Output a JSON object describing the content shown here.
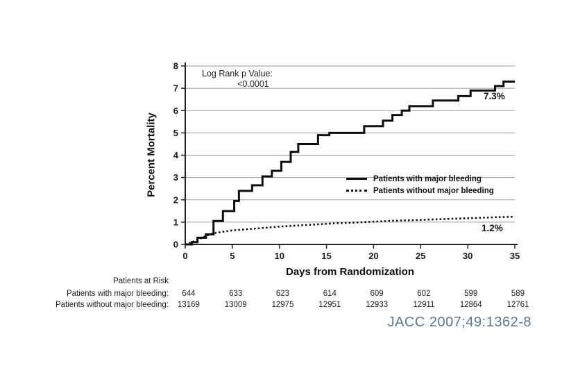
{
  "colors": {
    "background": "#ffffff",
    "curve": "#0e0e0e",
    "gridline": "#999999",
    "axis": "#222222",
    "citation_blue": "#5e7795"
  },
  "chart_data": {
    "type": "line",
    "subtype": "kaplan-meier-step",
    "title": "",
    "xlabel": "Days from Randomization",
    "ylabel": "Percent Mortality",
    "xlim": [
      0,
      35
    ],
    "ylim": [
      0,
      8
    ],
    "x_ticks": [
      0,
      5,
      10,
      15,
      20,
      25,
      30,
      35
    ],
    "y_ticks": [
      0,
      1,
      2,
      3,
      4,
      5,
      6,
      7,
      8
    ],
    "grid": "horizontal",
    "legend_position": "inside-right-middle",
    "annotation": {
      "line1": "Log Rank p Value:",
      "line2": "<0.0001"
    },
    "series": [
      {
        "name": "Patients with major bleeding",
        "style": "solid",
        "end_label": "7.3%",
        "points": [
          [
            0,
            0
          ],
          [
            0.7,
            0.1
          ],
          [
            1.3,
            0.3
          ],
          [
            2.2,
            0.45
          ],
          [
            3.0,
            1.05
          ],
          [
            4.0,
            1.5
          ],
          [
            5.2,
            1.95
          ],
          [
            5.7,
            2.4
          ],
          [
            7.1,
            2.65
          ],
          [
            8.2,
            3.05
          ],
          [
            9.2,
            3.3
          ],
          [
            10.2,
            3.7
          ],
          [
            11.2,
            4.15
          ],
          [
            12.0,
            4.5
          ],
          [
            14.1,
            4.9
          ],
          [
            15.3,
            5.0
          ],
          [
            19.0,
            5.3
          ],
          [
            21.0,
            5.55
          ],
          [
            22.0,
            5.8
          ],
          [
            23.0,
            6.0
          ],
          [
            23.8,
            6.2
          ],
          [
            26.3,
            6.45
          ],
          [
            29.0,
            6.65
          ],
          [
            30.3,
            6.9
          ],
          [
            32.9,
            7.1
          ],
          [
            33.8,
            7.3
          ],
          [
            35,
            7.3
          ]
        ]
      },
      {
        "name": "Patients without major bleeding",
        "style": "dotted",
        "end_label": "1.2%",
        "points": [
          [
            0,
            0
          ],
          [
            0.8,
            0.12
          ],
          [
            1.6,
            0.27
          ],
          [
            2.3,
            0.4
          ],
          [
            3.0,
            0.5
          ],
          [
            4.0,
            0.57
          ],
          [
            5.0,
            0.63
          ],
          [
            6.5,
            0.68
          ],
          [
            8.0,
            0.73
          ],
          [
            10.0,
            0.8
          ],
          [
            12.0,
            0.85
          ],
          [
            14.0,
            0.9
          ],
          [
            16.0,
            0.95
          ],
          [
            18.0,
            0.98
          ],
          [
            20.0,
            1.02
          ],
          [
            22.0,
            1.06
          ],
          [
            25.0,
            1.1
          ],
          [
            27.0,
            1.13
          ],
          [
            29.0,
            1.16
          ],
          [
            31.0,
            1.19
          ],
          [
            33.0,
            1.22
          ],
          [
            35,
            1.24
          ]
        ]
      }
    ]
  },
  "risk_table": {
    "title": "Patients at Risk",
    "rows": [
      {
        "label": "Patients with major bleeding:",
        "values": [
          "644",
          "633",
          "623",
          "614",
          "609",
          "602",
          "599",
          "589"
        ]
      },
      {
        "label": "Patients without major bleeding:",
        "values": [
          "13169",
          "13009",
          "12975",
          "12951",
          "12933",
          "12911",
          "12864",
          "12761"
        ]
      }
    ]
  },
  "citation": {
    "text": "JACC 2007;49:1362-8"
  }
}
